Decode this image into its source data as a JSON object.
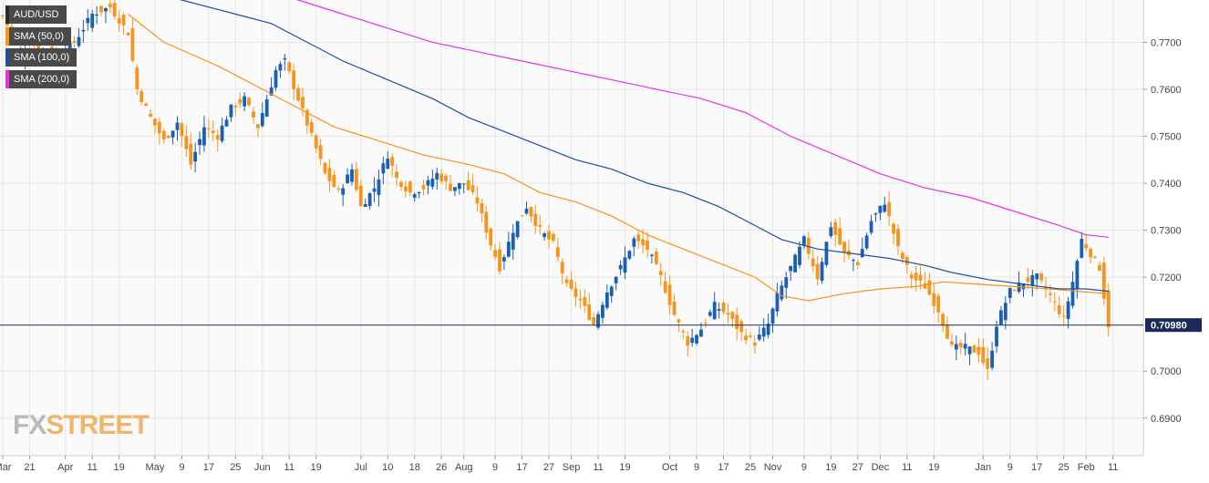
{
  "legend": [
    {
      "label": "AUD/USD",
      "color": "#2a2a2a"
    },
    {
      "label": "SMA (50,0)",
      "color": "#f7931a"
    },
    {
      "label": "SMA (100,0)",
      "color": "#1e4fa0"
    },
    {
      "label": "SMA (200,0)",
      "color": "#e830e8"
    }
  ],
  "logo": {
    "fx": "FX",
    "street": "STREET"
  },
  "current_price_label": "0.70980",
  "colors": {
    "bull": "#1a5fb4",
    "bear": "#f7941d",
    "sma50": "#f7931a",
    "sma100": "#1e4fa0",
    "sma200": "#e830e8",
    "price_line": "#1b2a5a",
    "grid": "#e6e6e6",
    "plot_bg": "#fafafa"
  },
  "chart_data": {
    "type": "candlestick",
    "title": "AUD/USD",
    "ylim": [
      0.682,
      0.779
    ],
    "y_ticks": [
      "0.7700",
      "0.7600",
      "0.7500",
      "0.7400",
      "0.7300",
      "0.7200",
      "0.7000",
      "0.6900"
    ],
    "x_ticks": [
      {
        "label": "Mar",
        "i": 0
      },
      {
        "label": "21",
        "i": 6
      },
      {
        "label": "Apr",
        "i": 14
      },
      {
        "label": "11",
        "i": 20
      },
      {
        "label": "19",
        "i": 26
      },
      {
        "label": "May",
        "i": 34
      },
      {
        "label": "9",
        "i": 40
      },
      {
        "label": "17",
        "i": 46
      },
      {
        "label": "25",
        "i": 52
      },
      {
        "label": "Jun",
        "i": 58
      },
      {
        "label": "11",
        "i": 64
      },
      {
        "label": "19",
        "i": 70
      },
      {
        "label": "Jul",
        "i": 80
      },
      {
        "label": "10",
        "i": 86
      },
      {
        "label": "18",
        "i": 92
      },
      {
        "label": "26",
        "i": 98
      },
      {
        "label": "Aug",
        "i": 103
      },
      {
        "label": "9",
        "i": 110
      },
      {
        "label": "17",
        "i": 116
      },
      {
        "label": "27",
        "i": 122
      },
      {
        "label": "Sep",
        "i": 127
      },
      {
        "label": "11",
        "i": 133
      },
      {
        "label": "19",
        "i": 139
      },
      {
        "label": "Oct",
        "i": 149
      },
      {
        "label": "9",
        "i": 155
      },
      {
        "label": "17",
        "i": 161
      },
      {
        "label": "25",
        "i": 167
      },
      {
        "label": "Nov",
        "i": 172
      },
      {
        "label": "9",
        "i": 179
      },
      {
        "label": "19",
        "i": 185
      },
      {
        "label": "27",
        "i": 191
      },
      {
        "label": "Dec",
        "i": 196
      },
      {
        "label": "11",
        "i": 202
      },
      {
        "label": "19",
        "i": 208
      },
      {
        "label": "Jan",
        "i": 219
      },
      {
        "label": "9",
        "i": 225
      },
      {
        "label": "17",
        "i": 231
      },
      {
        "label": "25",
        "i": 237
      },
      {
        "label": "Feb",
        "i": 242
      },
      {
        "label": "11",
        "i": 248
      }
    ],
    "current_price": 0.7098,
    "anchors": [
      [
        0,
        0.7755
      ],
      [
        4,
        0.768
      ],
      [
        8,
        0.769
      ],
      [
        12,
        0.767
      ],
      [
        16,
        0.77
      ],
      [
        20,
        0.776
      ],
      [
        24,
        0.7775
      ],
      [
        28,
        0.772
      ],
      [
        30,
        0.76
      ],
      [
        33,
        0.754
      ],
      [
        36,
        0.749
      ],
      [
        39,
        0.753
      ],
      [
        42,
        0.744
      ],
      [
        45,
        0.752
      ],
      [
        48,
        0.75
      ],
      [
        51,
        0.756
      ],
      [
        54,
        0.758
      ],
      [
        57,
        0.752
      ],
      [
        61,
        0.764
      ],
      [
        63,
        0.766
      ],
      [
        66,
        0.758
      ],
      [
        69,
        0.75
      ],
      [
        72,
        0.742
      ],
      [
        75,
        0.738
      ],
      [
        78,
        0.743
      ],
      [
        80,
        0.735
      ],
      [
        83,
        0.739
      ],
      [
        86,
        0.746
      ],
      [
        88,
        0.741
      ],
      [
        91,
        0.738
      ],
      [
        94,
        0.739
      ],
      [
        97,
        0.742
      ],
      [
        100,
        0.739
      ],
      [
        103,
        0.74
      ],
      [
        106,
        0.736
      ],
      [
        109,
        0.727
      ],
      [
        111,
        0.722
      ],
      [
        114,
        0.73
      ],
      [
        117,
        0.735
      ],
      [
        120,
        0.73
      ],
      [
        123,
        0.727
      ],
      [
        126,
        0.718
      ],
      [
        129,
        0.715
      ],
      [
        132,
        0.71
      ],
      [
        135,
        0.717
      ],
      [
        138,
        0.722
      ],
      [
        141,
        0.728
      ],
      [
        144,
        0.726
      ],
      [
        147,
        0.72
      ],
      [
        150,
        0.712
      ],
      [
        153,
        0.706
      ],
      [
        156,
        0.709
      ],
      [
        159,
        0.714
      ],
      [
        162,
        0.712
      ],
      [
        165,
        0.708
      ],
      [
        168,
        0.706
      ],
      [
        171,
        0.71
      ],
      [
        173,
        0.716
      ],
      [
        176,
        0.722
      ],
      [
        179,
        0.728
      ],
      [
        182,
        0.72
      ],
      [
        185,
        0.731
      ],
      [
        188,
        0.725
      ],
      [
        191,
        0.723
      ],
      [
        194,
        0.732
      ],
      [
        197,
        0.736
      ],
      [
        200,
        0.726
      ],
      [
        203,
        0.72
      ],
      [
        206,
        0.718
      ],
      [
        209,
        0.713
      ],
      [
        212,
        0.705
      ],
      [
        215,
        0.705
      ],
      [
        218,
        0.704
      ],
      [
        220,
        0.7
      ],
      [
        222,
        0.71
      ],
      [
        225,
        0.717
      ],
      [
        228,
        0.719
      ],
      [
        231,
        0.72
      ],
      [
        234,
        0.716
      ],
      [
        237,
        0.711
      ],
      [
        239,
        0.719
      ],
      [
        241,
        0.728
      ],
      [
        243,
        0.725
      ],
      [
        245,
        0.722
      ],
      [
        247,
        0.7098
      ]
    ],
    "sma50": [
      [
        28,
        0.776
      ],
      [
        36,
        0.77
      ],
      [
        48,
        0.765
      ],
      [
        58,
        0.76
      ],
      [
        66,
        0.756
      ],
      [
        74,
        0.752
      ],
      [
        84,
        0.749
      ],
      [
        94,
        0.746
      ],
      [
        104,
        0.744
      ],
      [
        112,
        0.742
      ],
      [
        120,
        0.738
      ],
      [
        128,
        0.736
      ],
      [
        136,
        0.733
      ],
      [
        144,
        0.729
      ],
      [
        152,
        0.726
      ],
      [
        160,
        0.723
      ],
      [
        168,
        0.72
      ],
      [
        174,
        0.716
      ],
      [
        180,
        0.715
      ],
      [
        188,
        0.7165
      ],
      [
        196,
        0.7175
      ],
      [
        204,
        0.718
      ],
      [
        210,
        0.719
      ],
      [
        218,
        0.7185
      ],
      [
        226,
        0.718
      ],
      [
        234,
        0.7175
      ],
      [
        240,
        0.717
      ],
      [
        247,
        0.7165
      ]
    ],
    "sma100": [
      [
        28,
        0.782
      ],
      [
        40,
        0.779
      ],
      [
        52,
        0.776
      ],
      [
        60,
        0.774
      ],
      [
        68,
        0.77
      ],
      [
        76,
        0.766
      ],
      [
        86,
        0.762
      ],
      [
        96,
        0.758
      ],
      [
        104,
        0.754
      ],
      [
        112,
        0.751
      ],
      [
        120,
        0.748
      ],
      [
        128,
        0.745
      ],
      [
        136,
        0.743
      ],
      [
        144,
        0.74
      ],
      [
        152,
        0.738
      ],
      [
        160,
        0.735
      ],
      [
        168,
        0.731
      ],
      [
        174,
        0.728
      ],
      [
        182,
        0.726
      ],
      [
        190,
        0.725
      ],
      [
        198,
        0.724
      ],
      [
        206,
        0.7225
      ],
      [
        212,
        0.721
      ],
      [
        220,
        0.7195
      ],
      [
        228,
        0.7185
      ],
      [
        236,
        0.7175
      ],
      [
        242,
        0.7175
      ],
      [
        247,
        0.717
      ]
    ],
    "sma200": [
      [
        56,
        0.782
      ],
      [
        66,
        0.779
      ],
      [
        76,
        0.776
      ],
      [
        86,
        0.773
      ],
      [
        96,
        0.77
      ],
      [
        106,
        0.768
      ],
      [
        116,
        0.766
      ],
      [
        126,
        0.764
      ],
      [
        136,
        0.762
      ],
      [
        146,
        0.76
      ],
      [
        156,
        0.758
      ],
      [
        166,
        0.755
      ],
      [
        176,
        0.75
      ],
      [
        186,
        0.746
      ],
      [
        196,
        0.742
      ],
      [
        206,
        0.739
      ],
      [
        216,
        0.737
      ],
      [
        226,
        0.734
      ],
      [
        236,
        0.731
      ],
      [
        242,
        0.729
      ],
      [
        247,
        0.7285
      ]
    ]
  }
}
